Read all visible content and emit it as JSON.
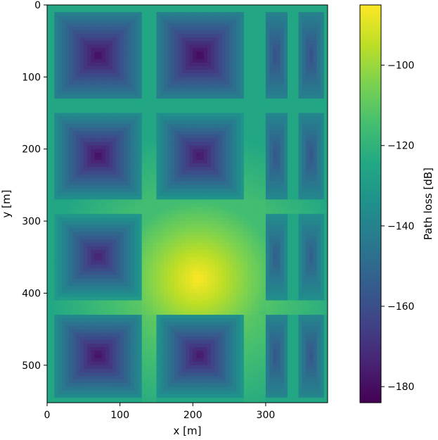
{
  "chart_data": {
    "type": "heatmap",
    "title": "",
    "xlabel": "x [m]",
    "ylabel": "y [m]",
    "colorbar_label": "Path loss [dB]",
    "colormap": "viridis",
    "xlim": [
      0,
      385
    ],
    "ylim": [
      552,
      0
    ],
    "y_inverted": true,
    "x_ticks": [
      0,
      100,
      200,
      300
    ],
    "y_ticks": [
      0,
      100,
      200,
      300,
      400,
      500
    ],
    "value_range": [
      -184,
      -85
    ],
    "colorbar_ticks": [
      -100,
      -120,
      -140,
      -160,
      -180
    ],
    "background_value": -125,
    "buildings": [
      {
        "x": [
          10,
          130
        ],
        "y": [
          10,
          130
        ],
        "center_value": -180,
        "edge_value": -140
      },
      {
        "x": [
          150,
          268
        ],
        "y": [
          10,
          130
        ],
        "center_value": -182,
        "edge_value": -140
      },
      {
        "x": [
          10,
          130
        ],
        "y": [
          150,
          268
        ],
        "center_value": -180,
        "edge_value": -135
      },
      {
        "x": [
          150,
          268
        ],
        "y": [
          150,
          268
        ],
        "center_value": -178,
        "edge_value": -133
      },
      {
        "x": [
          10,
          130
        ],
        "y": [
          290,
          408
        ],
        "center_value": -175,
        "edge_value": -130
      },
      {
        "x": [
          10,
          130
        ],
        "y": [
          428,
          545
        ],
        "center_value": -180,
        "edge_value": -135
      },
      {
        "x": [
          150,
          268
        ],
        "y": [
          428,
          545
        ],
        "center_value": -178,
        "edge_value": -132
      },
      {
        "x": [
          298,
          330
        ],
        "y": [
          10,
          130
        ],
        "center_value": -160,
        "edge_value": -140
      },
      {
        "x": [
          346,
          378
        ],
        "y": [
          10,
          130
        ],
        "center_value": -160,
        "edge_value": -140
      },
      {
        "x": [
          298,
          330
        ],
        "y": [
          150,
          268
        ],
        "center_value": -158,
        "edge_value": -138
      },
      {
        "x": [
          346,
          378
        ],
        "y": [
          150,
          268
        ],
        "center_value": -158,
        "edge_value": -138
      },
      {
        "x": [
          298,
          330
        ],
        "y": [
          290,
          408
        ],
        "center_value": -155,
        "edge_value": -135
      },
      {
        "x": [
          346,
          378
        ],
        "y": [
          290,
          408
        ],
        "center_value": -155,
        "edge_value": -135
      },
      {
        "x": [
          298,
          330
        ],
        "y": [
          428,
          545
        ],
        "center_value": -158,
        "edge_value": -138
      },
      {
        "x": [
          346,
          378
        ],
        "y": [
          428,
          545
        ],
        "center_value": -158,
        "edge_value": -138
      }
    ],
    "transmitter_zone": {
      "x": [
        130,
        298
      ],
      "y": [
        268,
        428
      ],
      "peak_value": -85,
      "source": [
        207,
        380
      ]
    },
    "street_value": -115
  }
}
